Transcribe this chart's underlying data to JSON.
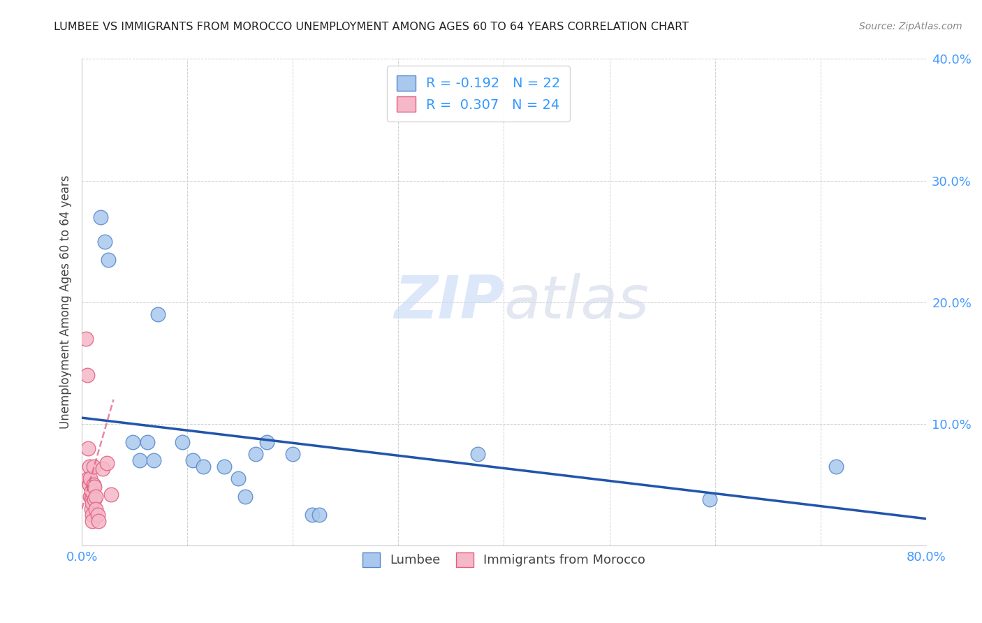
{
  "title": "LUMBEE VS IMMIGRANTS FROM MOROCCO UNEMPLOYMENT AMONG AGES 60 TO 64 YEARS CORRELATION CHART",
  "source": "Source: ZipAtlas.com",
  "ylabel": "Unemployment Among Ages 60 to 64 years",
  "xlim": [
    0,
    0.8
  ],
  "ylim": [
    0,
    0.4
  ],
  "xticks": [
    0.0,
    0.1,
    0.2,
    0.3,
    0.4,
    0.5,
    0.6,
    0.7,
    0.8
  ],
  "xtick_labels_show": [
    0.0,
    0.8
  ],
  "yticks": [
    0.0,
    0.1,
    0.2,
    0.3,
    0.4
  ],
  "ytick_labels": [
    "",
    "10.0%",
    "20.0%",
    "30.0%",
    "40.0%"
  ],
  "background_color": "#ffffff",
  "grid_color": "#d0d0d0",
  "watermark_zip": "ZIP",
  "watermark_atlas": "atlas",
  "lumbee_color": "#aac8ed",
  "morocco_color": "#f5b8c8",
  "lumbee_edge": "#5588cc",
  "morocco_edge": "#e06080",
  "lumbee_R": -0.192,
  "lumbee_N": 22,
  "morocco_R": 0.307,
  "morocco_N": 24,
  "lumbee_x": [
    0.018,
    0.022,
    0.025,
    0.048,
    0.055,
    0.062,
    0.068,
    0.072,
    0.095,
    0.105,
    0.115,
    0.135,
    0.148,
    0.155,
    0.165,
    0.175,
    0.2,
    0.218,
    0.225,
    0.375,
    0.595,
    0.715
  ],
  "lumbee_y": [
    0.27,
    0.25,
    0.235,
    0.085,
    0.07,
    0.085,
    0.07,
    0.19,
    0.085,
    0.07,
    0.065,
    0.065,
    0.055,
    0.04,
    0.075,
    0.085,
    0.075,
    0.025,
    0.025,
    0.075,
    0.038,
    0.065
  ],
  "morocco_x": [
    0.004,
    0.005,
    0.006,
    0.006,
    0.007,
    0.007,
    0.008,
    0.008,
    0.009,
    0.009,
    0.01,
    0.01,
    0.01,
    0.011,
    0.011,
    0.012,
    0.012,
    0.013,
    0.013,
    0.015,
    0.016,
    0.02,
    0.024,
    0.028
  ],
  "morocco_y": [
    0.17,
    0.14,
    0.08,
    0.055,
    0.065,
    0.05,
    0.055,
    0.04,
    0.045,
    0.03,
    0.035,
    0.025,
    0.02,
    0.065,
    0.05,
    0.048,
    0.038,
    0.04,
    0.03,
    0.025,
    0.02,
    0.063,
    0.068,
    0.042
  ],
  "legend_lumbee_label": "Lumbee",
  "legend_morocco_label": "Immigrants from Morocco",
  "lumbee_trend_color": "#2255aa",
  "morocco_trend_color": "#e06080",
  "lumbee_trend_x0": 0.0,
  "lumbee_trend_x1": 0.8,
  "lumbee_trend_y0": 0.105,
  "lumbee_trend_y1": 0.022,
  "morocco_trend_x0": 0.0,
  "morocco_trend_x1": 0.03,
  "morocco_trend_y0": 0.03,
  "morocco_trend_y1": 0.12
}
